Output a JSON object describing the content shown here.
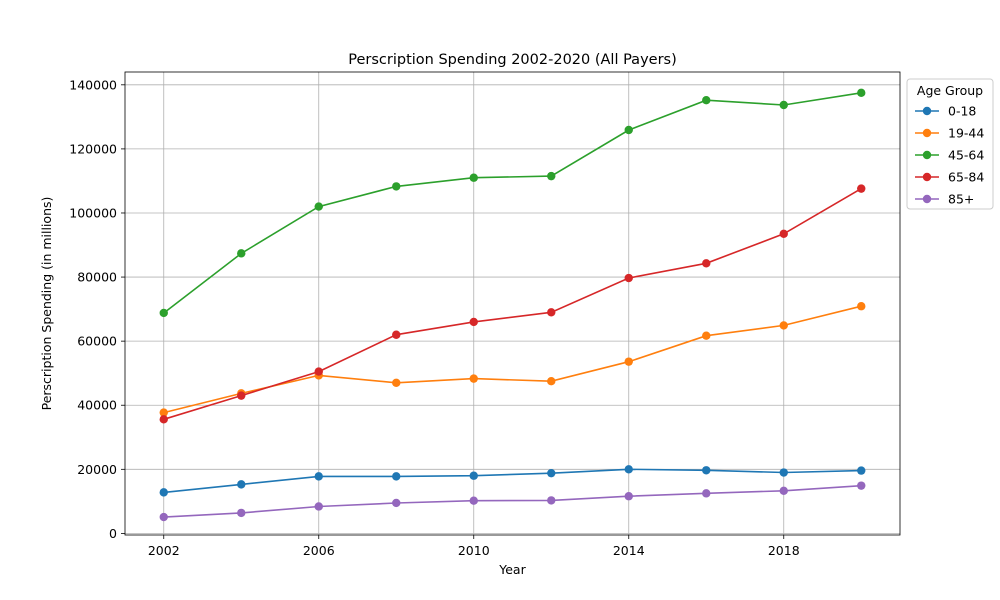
{
  "chart_data": {
    "type": "line",
    "title": "Perscription Spending 2002-2020 (All Payers)",
    "xlabel": "Year",
    "ylabel": "Perscription Spending (in millions)",
    "x": [
      2002,
      2004,
      2006,
      2008,
      2010,
      2012,
      2014,
      2016,
      2018,
      2020
    ],
    "xlim": [
      2001,
      2021
    ],
    "ylim": [
      -500,
      144000
    ],
    "xticks": [
      2002,
      2006,
      2010,
      2014,
      2018
    ],
    "yticks": [
      0,
      20000,
      40000,
      60000,
      80000,
      100000,
      120000,
      140000
    ],
    "grid": true,
    "legend": {
      "title": "Age Group",
      "placement": "outside upper right"
    },
    "series": [
      {
        "name": "0-18",
        "color": "#1f77b4",
        "values": [
          12800,
          15300,
          17800,
          17800,
          18000,
          18800,
          20000,
          19700,
          19000,
          19600
        ]
      },
      {
        "name": "19-44",
        "color": "#ff7f0e",
        "values": [
          37700,
          43700,
          49300,
          47000,
          48300,
          47500,
          53600,
          61700,
          64900,
          70900
        ]
      },
      {
        "name": "45-64",
        "color": "#2ca02c",
        "values": [
          68800,
          87400,
          102000,
          108300,
          111000,
          111500,
          125900,
          135200,
          133700,
          137500
        ]
      },
      {
        "name": "65-84",
        "color": "#d62728",
        "values": [
          35600,
          43000,
          50500,
          62000,
          66000,
          69000,
          79700,
          84300,
          93500,
          107600
        ]
      },
      {
        "name": "85+",
        "color": "#9467bd",
        "values": [
          5100,
          6400,
          8400,
          9500,
          10200,
          10300,
          11600,
          12500,
          13300,
          14900
        ]
      }
    ]
  }
}
